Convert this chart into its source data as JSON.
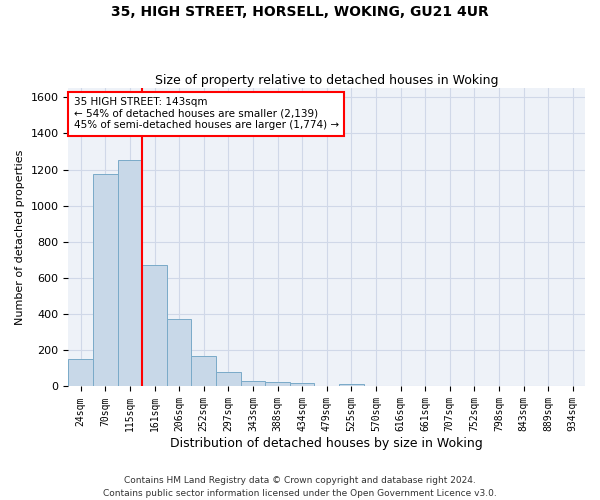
{
  "title": "35, HIGH STREET, HORSELL, WOKING, GU21 4UR",
  "subtitle": "Size of property relative to detached houses in Woking",
  "xlabel": "Distribution of detached houses by size in Woking",
  "ylabel": "Number of detached properties",
  "categories": [
    "24sqm",
    "70sqm",
    "115sqm",
    "161sqm",
    "206sqm",
    "252sqm",
    "297sqm",
    "343sqm",
    "388sqm",
    "434sqm",
    "479sqm",
    "525sqm",
    "570sqm",
    "616sqm",
    "661sqm",
    "707sqm",
    "752sqm",
    "798sqm",
    "843sqm",
    "889sqm",
    "934sqm"
  ],
  "values": [
    150,
    1175,
    1255,
    670,
    375,
    170,
    80,
    30,
    22,
    18,
    0,
    15,
    0,
    0,
    0,
    0,
    0,
    0,
    0,
    0,
    0
  ],
  "bar_color": "#c8d8e8",
  "bar_edge_color": "#7aaac8",
  "red_line_x": 2.5,
  "annotation_text": "35 HIGH STREET: 143sqm\n← 54% of detached houses are smaller (2,139)\n45% of semi-detached houses are larger (1,774) →",
  "ylim": [
    0,
    1650
  ],
  "yticks": [
    0,
    200,
    400,
    600,
    800,
    1000,
    1200,
    1400,
    1600
  ],
  "footer": "Contains HM Land Registry data © Crown copyright and database right 2024.\nContains public sector information licensed under the Open Government Licence v3.0.",
  "grid_color": "#d0d8e8",
  "background_color": "#eef2f8"
}
